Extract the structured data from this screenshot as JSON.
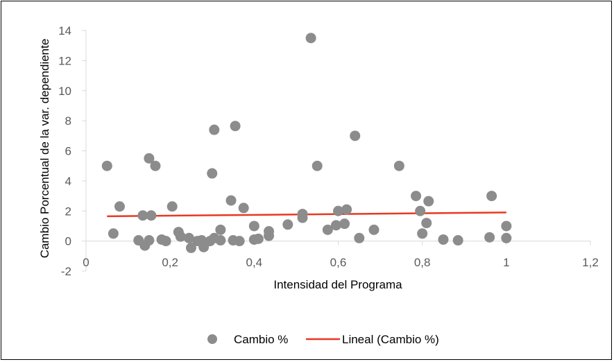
{
  "chart_data": {
    "type": "scatter",
    "title": "",
    "xlabel": "Intensidad del Programa",
    "ylabel": "Cambio Porcentual de la var. dependiente",
    "xlim": [
      0,
      1.2
    ],
    "ylim": [
      -2,
      14
    ],
    "x_ticks": [
      0,
      0.2,
      0.4,
      0.6,
      0.8,
      1,
      1.2
    ],
    "x_tick_labels": [
      "0",
      "0,2",
      "0,4",
      "0,6",
      "0,8",
      "1",
      "1,2"
    ],
    "y_ticks": [
      -2,
      0,
      2,
      4,
      6,
      8,
      10,
      12,
      14
    ],
    "y_tick_labels": [
      "-2",
      "0",
      "2",
      "4",
      "6",
      "8",
      "10",
      "12",
      "14"
    ],
    "grid": false,
    "legend_position": "bottom",
    "series": [
      {
        "name": "Cambio %",
        "kind": "scatter",
        "color": "#8c8c8c",
        "points": [
          [
            0.05,
            5.0
          ],
          [
            0.065,
            0.5
          ],
          [
            0.08,
            2.3
          ],
          [
            0.125,
            0.05
          ],
          [
            0.135,
            1.7
          ],
          [
            0.14,
            -0.3
          ],
          [
            0.15,
            0.05
          ],
          [
            0.15,
            5.5
          ],
          [
            0.155,
            1.7
          ],
          [
            0.165,
            5.0
          ],
          [
            0.18,
            0.1
          ],
          [
            0.19,
            0.0
          ],
          [
            0.205,
            2.3
          ],
          [
            0.22,
            0.6
          ],
          [
            0.225,
            0.3
          ],
          [
            0.245,
            0.2
          ],
          [
            0.25,
            -0.45
          ],
          [
            0.265,
            0.0
          ],
          [
            0.275,
            0.05
          ],
          [
            0.28,
            -0.4
          ],
          [
            0.295,
            0.0
          ],
          [
            0.305,
            0.2
          ],
          [
            0.3,
            4.5
          ],
          [
            0.305,
            7.4
          ],
          [
            0.32,
            0.05
          ],
          [
            0.32,
            0.75
          ],
          [
            0.345,
            2.7
          ],
          [
            0.35,
            0.05
          ],
          [
            0.355,
            7.65
          ],
          [
            0.365,
            0.0
          ],
          [
            0.375,
            2.2
          ],
          [
            0.4,
            0.1
          ],
          [
            0.4,
            1.0
          ],
          [
            0.41,
            0.15
          ],
          [
            0.435,
            0.35
          ],
          [
            0.435,
            0.65
          ],
          [
            0.48,
            1.1
          ],
          [
            0.515,
            1.55
          ],
          [
            0.515,
            1.8
          ],
          [
            0.535,
            13.5
          ],
          [
            0.55,
            5.0
          ],
          [
            0.575,
            0.75
          ],
          [
            0.595,
            1.05
          ],
          [
            0.6,
            2.0
          ],
          [
            0.615,
            1.15
          ],
          [
            0.62,
            2.1
          ],
          [
            0.64,
            7.0
          ],
          [
            0.65,
            0.2
          ],
          [
            0.685,
            0.75
          ],
          [
            0.745,
            5.0
          ],
          [
            0.785,
            3.0
          ],
          [
            0.795,
            2.0
          ],
          [
            0.8,
            0.5
          ],
          [
            0.81,
            1.2
          ],
          [
            0.815,
            2.65
          ],
          [
            0.85,
            0.1
          ],
          [
            0.885,
            0.05
          ],
          [
            0.96,
            0.25
          ],
          [
            0.965,
            3.0
          ],
          [
            1.0,
            1.0
          ],
          [
            1.0,
            0.2
          ]
        ]
      },
      {
        "name": "Lineal (Cambio %)",
        "kind": "line",
        "color": "#e8381f",
        "points": [
          [
            0.05,
            1.65
          ],
          [
            1.0,
            1.9
          ]
        ]
      }
    ]
  }
}
